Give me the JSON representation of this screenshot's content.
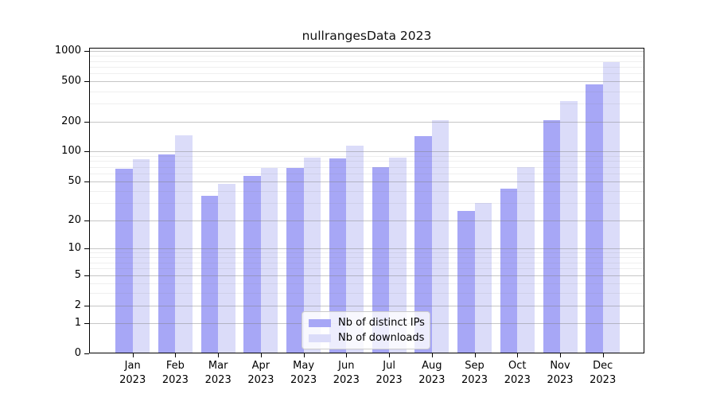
{
  "chart_data": {
    "type": "bar",
    "title": "nullrangesData 2023",
    "categories": [
      "Jan",
      "Feb",
      "Mar",
      "Apr",
      "May",
      "Jun",
      "Jul",
      "Aug",
      "Sep",
      "Oct",
      "Nov",
      "Dec"
    ],
    "year": "2023",
    "series": [
      {
        "name": "Nb of distinct IPs",
        "color": "#A7A7F6",
        "values": [
          67,
          93,
          36,
          57,
          69,
          86,
          70,
          143,
          25,
          42,
          207,
          465
        ]
      },
      {
        "name": "Nb of downloads",
        "color": "#DBDCF9",
        "values": [
          83,
          146,
          47,
          68,
          87,
          115,
          87,
          207,
          30,
          70,
          320,
          775
        ]
      }
    ],
    "yscale": "log10(1+x)",
    "ylim": [
      0,
      1080
    ],
    "yticks": [
      1000,
      500,
      200,
      100,
      50,
      20,
      10,
      5,
      2,
      1,
      0
    ],
    "minor_grid_values": [
      3,
      4,
      6,
      7,
      8,
      9,
      30,
      40,
      60,
      70,
      80,
      90,
      300,
      400,
      600,
      700,
      800,
      900
    ],
    "grid": true,
    "legend_position": "lower-center",
    "background": "#ffffff",
    "spine_color": "#000000"
  }
}
